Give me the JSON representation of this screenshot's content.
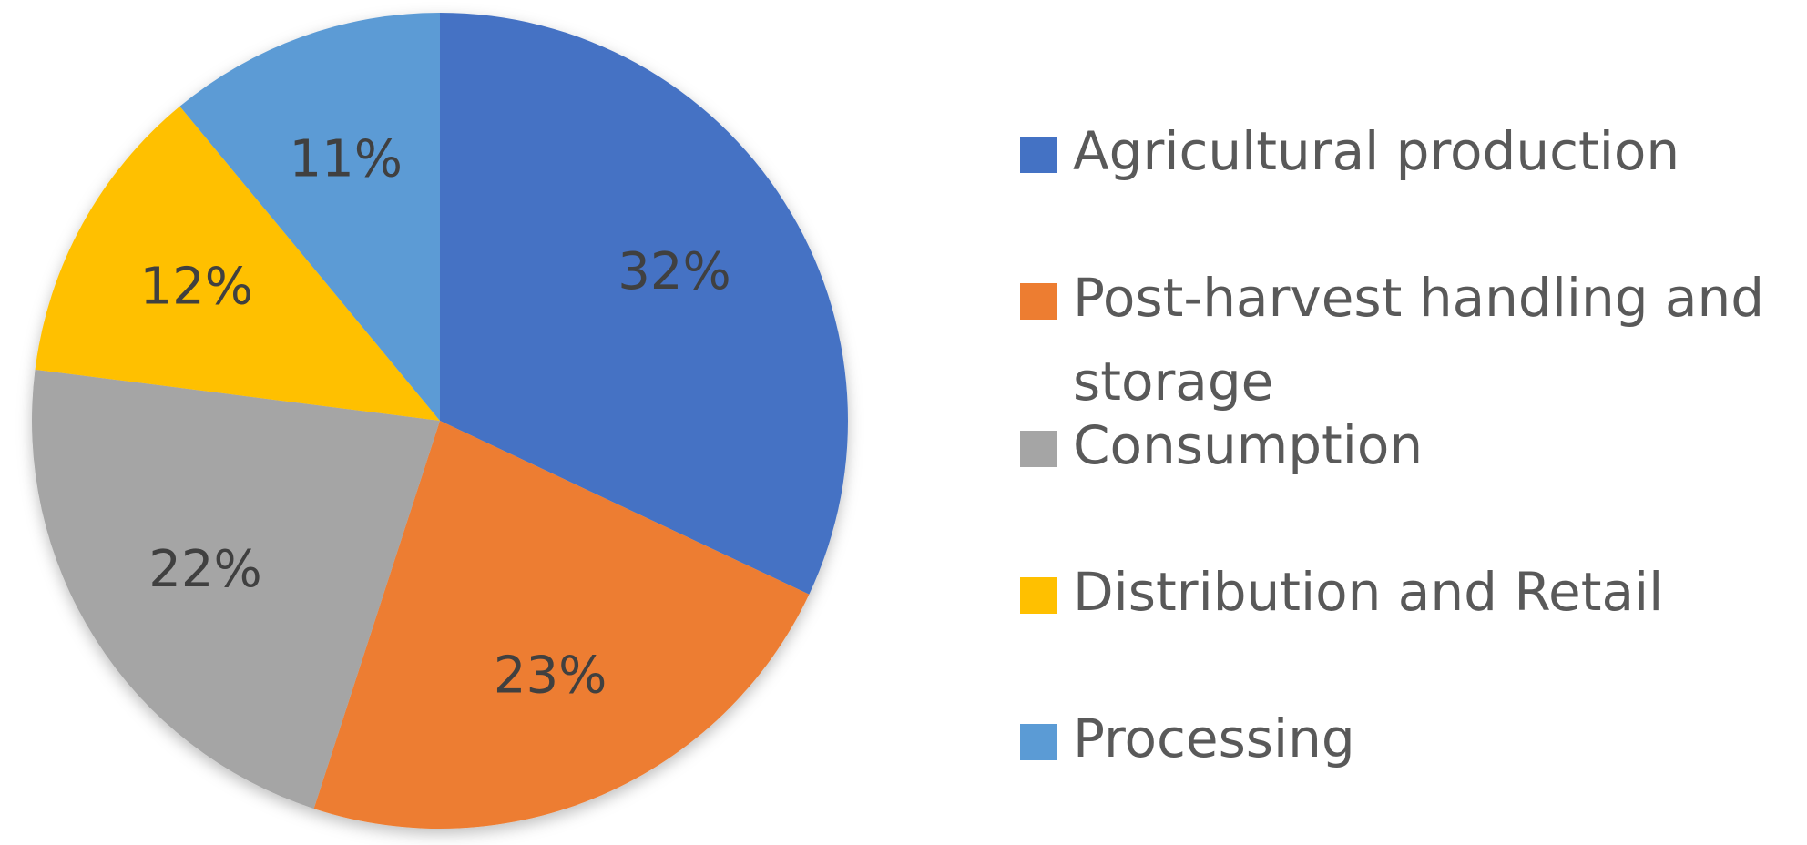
{
  "chart_data": {
    "type": "pie",
    "categories": [
      "Agricultural production",
      "Post-harvest handling and storage",
      "Consumption",
      "Distribution and Retail",
      "Processing"
    ],
    "values": [
      32,
      23,
      22,
      12,
      11
    ],
    "labels": [
      "32%",
      "23%",
      "22%",
      "12%",
      "11%"
    ],
    "colors": [
      "#4472C4",
      "#ED7D31",
      "#A5A5A5",
      "#FFC000",
      "#5B9BD5"
    ],
    "start_angle": "12 o'clock",
    "direction": "clockwise",
    "legend_position": "right",
    "title": ""
  }
}
